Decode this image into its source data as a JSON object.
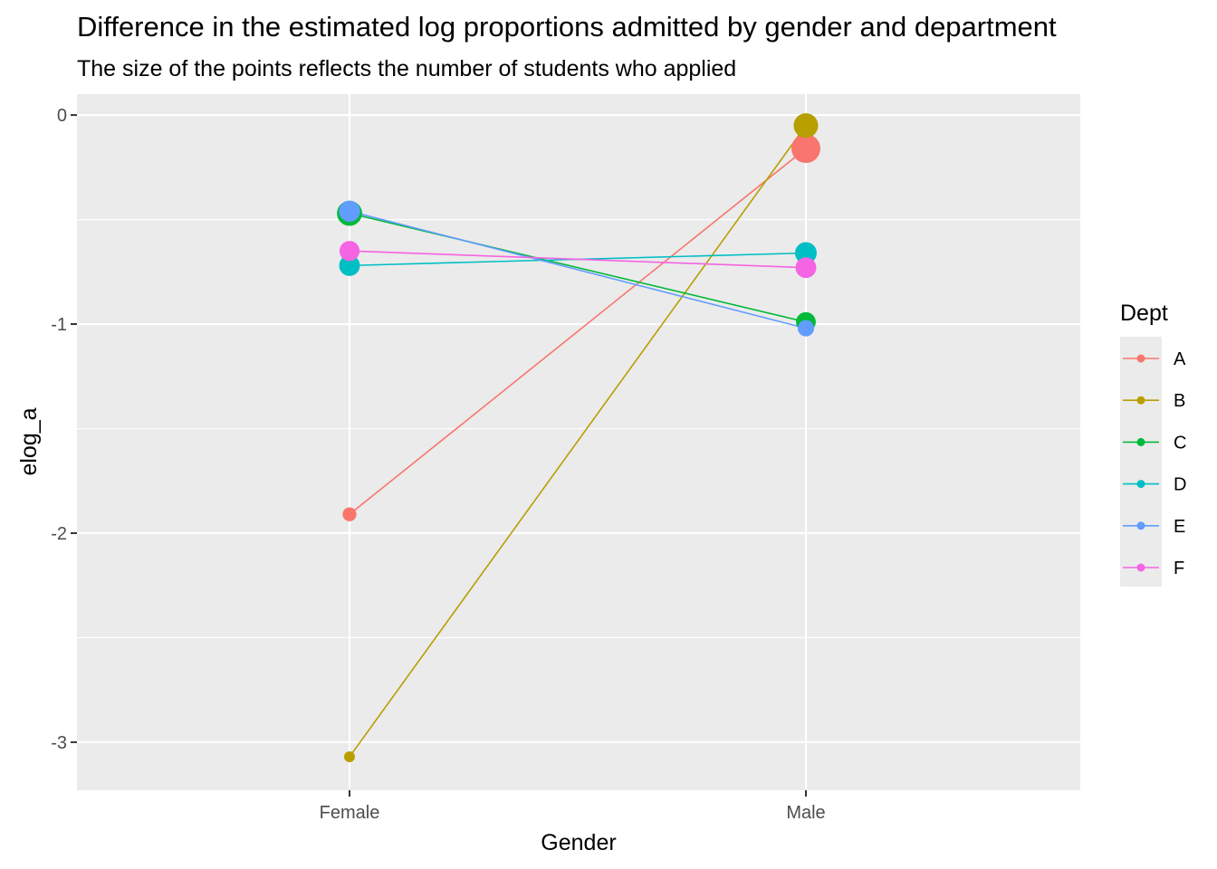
{
  "chart_data": {
    "type": "line",
    "title": "Difference in the estimated log proportions admitted by gender and department",
    "subtitle": "The size of the points reflects the number of students who applied",
    "xlabel": "Gender",
    "ylabel": "elog_a",
    "categories": [
      "Female",
      "Male"
    ],
    "ylim": [
      -3.23,
      0.1
    ],
    "yticks": [
      0,
      -1,
      -2,
      -3
    ],
    "ytick_labels": [
      "0",
      "-1",
      "-2",
      "-3"
    ],
    "grid": true,
    "legend": {
      "title": "Dept",
      "position": "right"
    },
    "series": [
      {
        "name": "A",
        "color": "#F8766D",
        "values": [
          -1.91,
          -0.16
        ],
        "applicants": [
          108,
          825
        ]
      },
      {
        "name": "B",
        "color": "#B79F00",
        "values": [
          -3.07,
          -0.05
        ],
        "applicants": [
          25,
          560
        ]
      },
      {
        "name": "C",
        "color": "#00BA38",
        "values": [
          -0.47,
          -0.99
        ],
        "applicants": [
          593,
          325
        ]
      },
      {
        "name": "D",
        "color": "#00BFC4",
        "values": [
          -0.72,
          -0.66
        ],
        "applicants": [
          375,
          417
        ]
      },
      {
        "name": "E",
        "color": "#619CFF",
        "values": [
          -0.46,
          -1.02
        ],
        "applicants": [
          393,
          191
        ]
      },
      {
        "name": "F",
        "color": "#F564E3",
        "values": [
          -0.65,
          -0.73
        ],
        "applicants": [
          341,
          373
        ]
      }
    ]
  }
}
